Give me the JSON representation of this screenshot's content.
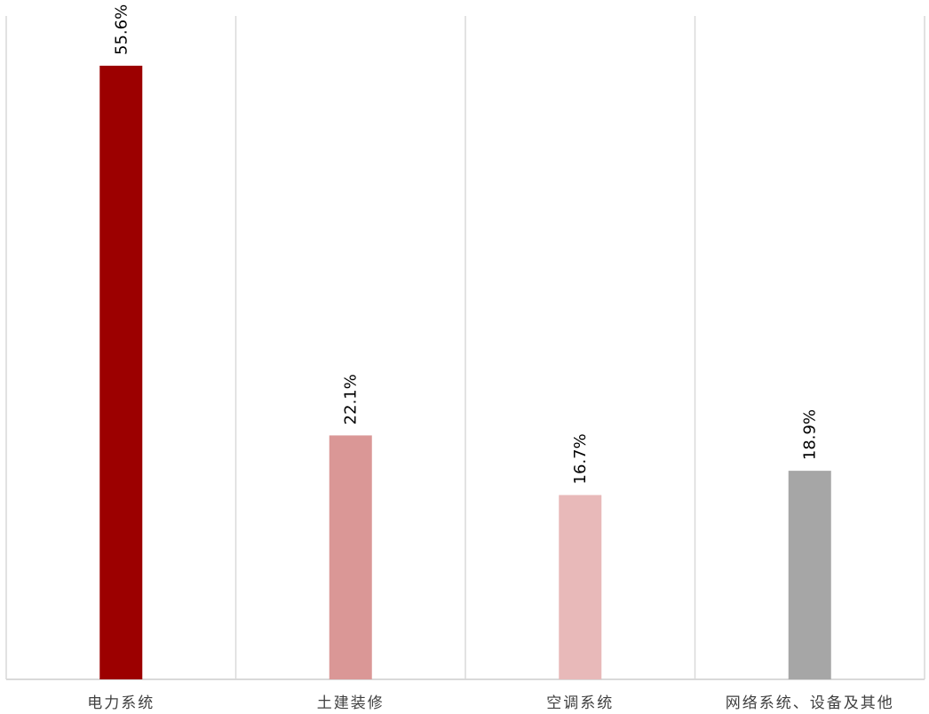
{
  "chart_data": {
    "type": "bar",
    "title": "",
    "xlabel": "",
    "ylabel": "",
    "categories": [
      "电力系统",
      "土建装修",
      "空调系统",
      "网络系统、设备及其他"
    ],
    "values": [
      55.6,
      22.1,
      16.7,
      18.9
    ],
    "data_labels": [
      "55.6%",
      "22.1%",
      "16.7%",
      "18.9%"
    ],
    "unit": "%",
    "ylim": [
      0,
      60
    ],
    "colors": [
      "#9c0000",
      "#da9796",
      "#e8b9b9",
      "#a6a6a6"
    ],
    "grid": "vertical category separators",
    "legend": "none"
  }
}
